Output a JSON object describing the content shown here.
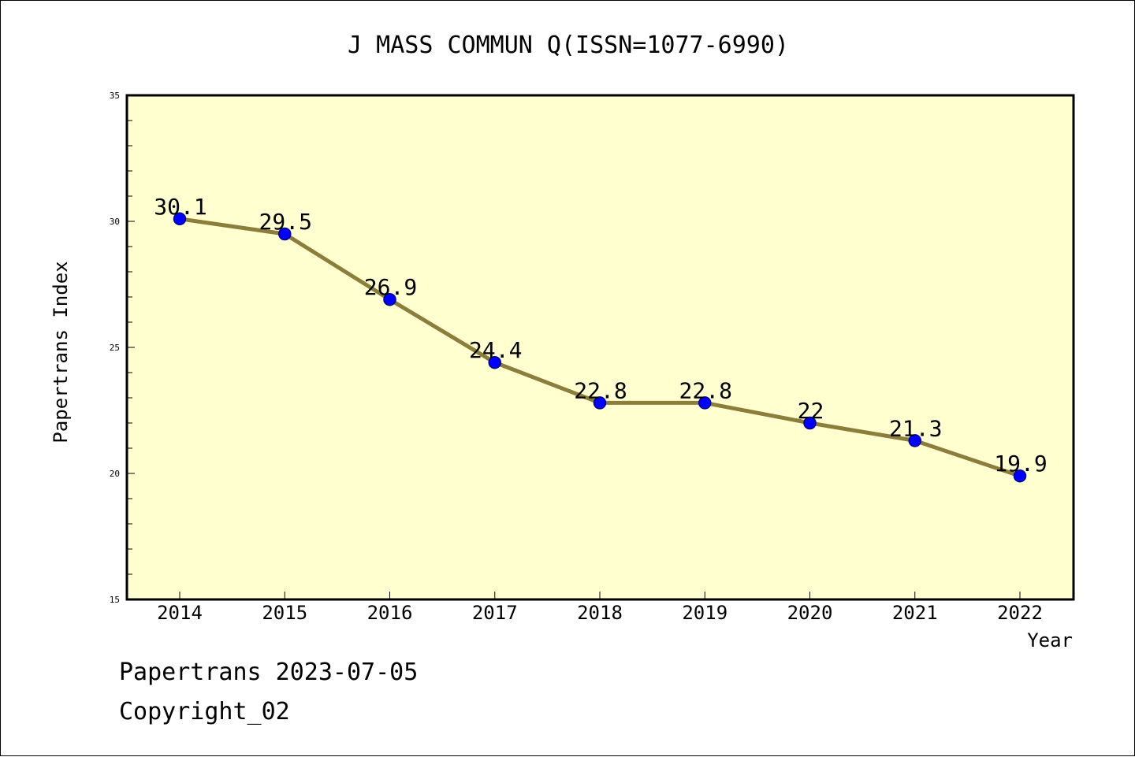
{
  "chart_data": {
    "type": "line",
    "title": "J MASS COMMUN Q(ISSN=1077-6990)",
    "xlabel": "Year",
    "ylabel": "Papertrans Index",
    "categories": [
      "2014",
      "2015",
      "2016",
      "2017",
      "2018",
      "2019",
      "2020",
      "2021",
      "2022"
    ],
    "series": [
      {
        "values": [
          30.1,
          29.5,
          26.9,
          24.4,
          22.8,
          22.8,
          22,
          21.3,
          19.9
        ]
      }
    ],
    "data_labels": [
      "30.1",
      "29.5",
      "26.9",
      "24.4",
      "22.8",
      "22.8",
      "22",
      "21.3",
      "19.9"
    ],
    "ylim": [
      15,
      35
    ],
    "y_ticks": [
      "15",
      "20",
      "25",
      "30",
      "35"
    ],
    "grid": false,
    "legend": "none",
    "colors": {
      "plot_background": "#ffffd0",
      "line": "#8b7d3a",
      "marker": "#0000ff",
      "marker_edge": "#00008b"
    }
  },
  "footer": {
    "line1": "Papertrans 2023-07-05",
    "line2": "Copyright_02"
  }
}
